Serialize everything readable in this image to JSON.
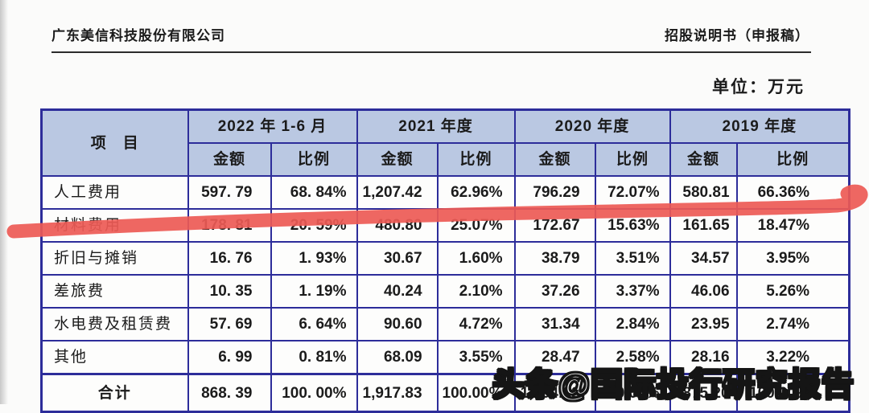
{
  "page_header": {
    "company": "广东美信科技股份有限公司",
    "doc_title": "招股说明书（申报稿）"
  },
  "unit_label": "单位：万元",
  "table": {
    "item_header": "项　目",
    "amount_label": "金额",
    "ratio_label": "比例",
    "period_groups": [
      "2022 年 1-6 月",
      "2021 年度",
      "2020 年度",
      "2019 年度"
    ],
    "rows": [
      {
        "item": "人工费用",
        "cells": [
          "597. 79",
          "68. 84%",
          "1,207.42",
          "62.96%",
          "796.29",
          "72.07%",
          "580.81",
          "66.36%"
        ]
      },
      {
        "item": "材料费用",
        "cells": [
          "178. 81",
          "20. 59%",
          "480.80",
          "25.07%",
          "172.67",
          "15.63%",
          "161.65",
          "18.47%"
        ]
      },
      {
        "item": "折旧与摊销",
        "cells": [
          "16. 76",
          "1. 93%",
          "30.67",
          "1.60%",
          "38.79",
          "3.51%",
          "34.57",
          "3.95%"
        ]
      },
      {
        "item": "差旅费",
        "cells": [
          "10. 35",
          "1. 19%",
          "40.24",
          "2.10%",
          "37.26",
          "3.37%",
          "46.06",
          "5.26%"
        ]
      },
      {
        "item": "水电费及租赁费",
        "cells": [
          "57. 69",
          "6. 64%",
          "90.60",
          "4.72%",
          "31.34",
          "2.84%",
          "23.95",
          "2.74%"
        ]
      },
      {
        "item": "其他",
        "cells": [
          "6. 99",
          "0. 81%",
          "68.09",
          "3.55%",
          "28.47",
          "2.58%",
          "28.16",
          "3.22%"
        ]
      },
      {
        "item": "合计",
        "is_total": true,
        "cells": [
          "868. 39",
          "100. 00%",
          "1,917.83",
          "100.00%",
          "1,104.82",
          "100.00%",
          "875.20",
          "100.00%"
        ]
      }
    ]
  },
  "annotations": {
    "watermark": "头条@国际投行研究报告"
  },
  "colors": {
    "header_bg": "#bac8e2",
    "border_navy": "#2d2d9a",
    "marker_red": "#ed5a55"
  }
}
